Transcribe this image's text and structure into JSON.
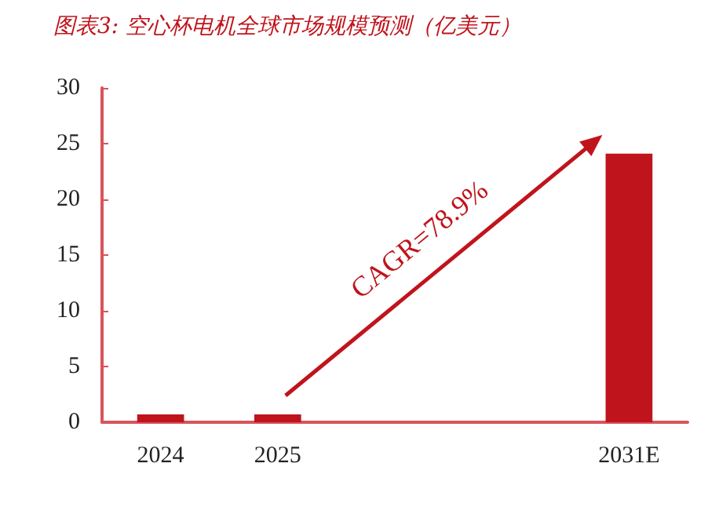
{
  "chart_data": {
    "type": "bar",
    "title": "图表3: 空心杯电机全球市场规模预测（亿美元）",
    "categories": [
      "2024",
      "2025",
      null,
      null,
      "2031E"
    ],
    "values": [
      0.7,
      0.7,
      null,
      null,
      24.1
    ],
    "color": "#c0141c",
    "ylim": [
      0,
      30
    ],
    "yticks": [
      0,
      5,
      10,
      15,
      20,
      25,
      30
    ],
    "annotations": [
      "CAGR=78.9%"
    ]
  }
}
